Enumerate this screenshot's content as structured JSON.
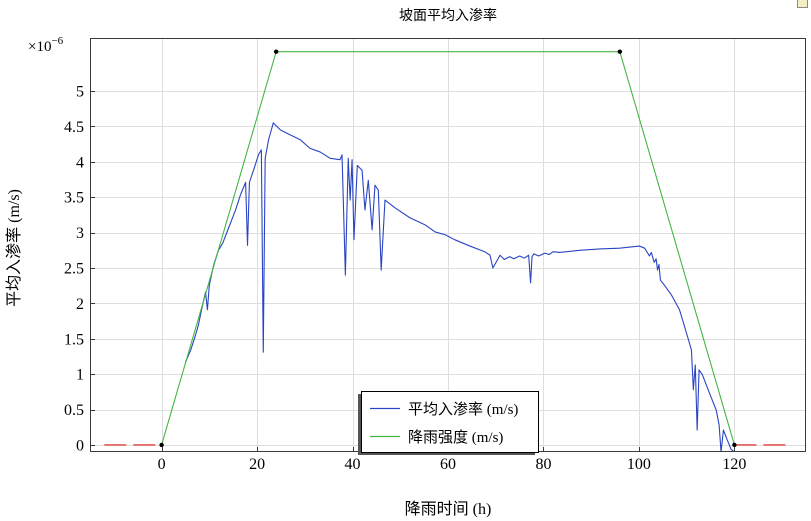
{
  "chart_data": {
    "type": "line",
    "title": "坡面平均入渗率",
    "xlabel": "降雨时间 (h)",
    "ylabel": "平均入渗率 (m/s)",
    "y_multiplier": {
      "base": "×10",
      "exponent": "−6"
    },
    "xlim": [
      -15,
      135
    ],
    "ylim": [
      -0.1,
      5.75
    ],
    "xticks": [
      0,
      20,
      40,
      60,
      80,
      100,
      120
    ],
    "yticks": [
      0,
      0.5,
      1,
      1.5,
      2,
      2.5,
      3,
      3.5,
      4,
      4.5,
      5
    ],
    "grid": true,
    "legend": {
      "placement": "bottom-center"
    },
    "series": [
      {
        "name": "平均入渗率 (m/s)",
        "color": "#2a45c2",
        "style": "solid",
        "points": [
          [
            5.0,
            1.17
          ],
          [
            6.1,
            1.34
          ],
          [
            7.1,
            1.55
          ],
          [
            7.7,
            1.69
          ],
          [
            8.6,
            1.98
          ],
          [
            9.2,
            2.16
          ],
          [
            9.6,
            1.91
          ],
          [
            10.0,
            2.26
          ],
          [
            10.9,
            2.54
          ],
          [
            11.9,
            2.75
          ],
          [
            12.8,
            2.85
          ],
          [
            14.0,
            3.06
          ],
          [
            15.5,
            3.32
          ],
          [
            16.5,
            3.53
          ],
          [
            17.6,
            3.71
          ],
          [
            18.0,
            2.82
          ],
          [
            18.4,
            3.71
          ],
          [
            19.4,
            3.91
          ],
          [
            20.3,
            4.1
          ],
          [
            20.9,
            4.17
          ],
          [
            21.3,
            1.31
          ],
          [
            21.7,
            4.05
          ],
          [
            22.4,
            4.31
          ],
          [
            23.4,
            4.55
          ],
          [
            24.9,
            4.45
          ],
          [
            27.0,
            4.38
          ],
          [
            29.1,
            4.31
          ],
          [
            31.1,
            4.19
          ],
          [
            33.2,
            4.14
          ],
          [
            35.3,
            4.05
          ],
          [
            37.4,
            4.03
          ],
          [
            37.8,
            4.1
          ],
          [
            38.5,
            2.4
          ],
          [
            39.1,
            4.05
          ],
          [
            39.5,
            3.46
          ],
          [
            39.9,
            4.03
          ],
          [
            40.3,
            2.9
          ],
          [
            41.0,
            3.95
          ],
          [
            42.0,
            3.88
          ],
          [
            42.6,
            3.32
          ],
          [
            43.3,
            3.74
          ],
          [
            44.1,
            3.04
          ],
          [
            44.7,
            3.67
          ],
          [
            45.4,
            3.6
          ],
          [
            46.0,
            2.47
          ],
          [
            46.8,
            3.46
          ],
          [
            48.9,
            3.35
          ],
          [
            52.0,
            3.21
          ],
          [
            55.2,
            3.11
          ],
          [
            57.3,
            3.01
          ],
          [
            59.4,
            2.97
          ],
          [
            61.4,
            2.9
          ],
          [
            64.6,
            2.81
          ],
          [
            67.7,
            2.73
          ],
          [
            68.8,
            2.68
          ],
          [
            69.4,
            2.5
          ],
          [
            70.9,
            2.68
          ],
          [
            71.8,
            2.62
          ],
          [
            72.9,
            2.66
          ],
          [
            73.8,
            2.63
          ],
          [
            75.0,
            2.67
          ],
          [
            76.0,
            2.64
          ],
          [
            76.9,
            2.68
          ],
          [
            77.3,
            2.29
          ],
          [
            77.6,
            2.66
          ],
          [
            78.0,
            2.7
          ],
          [
            79.0,
            2.67
          ],
          [
            80.3,
            2.71
          ],
          [
            81.2,
            2.69
          ],
          [
            82.0,
            2.73
          ],
          [
            83.4,
            2.72
          ],
          [
            87.6,
            2.75
          ],
          [
            91.8,
            2.77
          ],
          [
            95.9,
            2.78
          ],
          [
            100.1,
            2.81
          ],
          [
            101.2,
            2.78
          ],
          [
            102.2,
            2.67
          ],
          [
            102.6,
            2.72
          ],
          [
            103.2,
            2.58
          ],
          [
            103.6,
            2.63
          ],
          [
            103.9,
            2.47
          ],
          [
            104.2,
            2.55
          ],
          [
            104.5,
            2.33
          ],
          [
            105.3,
            2.26
          ],
          [
            106.8,
            2.12
          ],
          [
            108.5,
            1.91
          ],
          [
            110.1,
            1.55
          ],
          [
            111.0,
            1.34
          ],
          [
            111.4,
            0.78
          ],
          [
            111.8,
            1.13
          ],
          [
            112.2,
            0.21
          ],
          [
            112.6,
            1.06
          ],
          [
            113.3,
            0.99
          ],
          [
            114.1,
            0.85
          ],
          [
            115.2,
            0.66
          ],
          [
            116.2,
            0.49
          ],
          [
            116.8,
            0.28
          ],
          [
            117.2,
            -0.1
          ],
          [
            117.7,
            0.21
          ],
          [
            118.5,
            0.07
          ],
          [
            119.3,
            -0.06
          ],
          [
            120.0,
            -0.1
          ]
        ]
      },
      {
        "name": "降雨强度 (m/s)",
        "color": "#45b545",
        "style": "solid",
        "markers": true,
        "marker_color": "#000000",
        "points": [
          [
            0,
            0
          ],
          [
            24,
            5.556
          ],
          [
            96,
            5.556
          ],
          [
            120,
            0
          ]
        ]
      },
      {
        "color": "#e5413b",
        "style": "dashed",
        "points": [
          [
            -12,
            0
          ],
          [
            0,
            0
          ]
        ]
      },
      {
        "color": "#e5413b",
        "style": "dashed",
        "points": [
          [
            120,
            0
          ],
          [
            132,
            0
          ]
        ]
      }
    ]
  }
}
